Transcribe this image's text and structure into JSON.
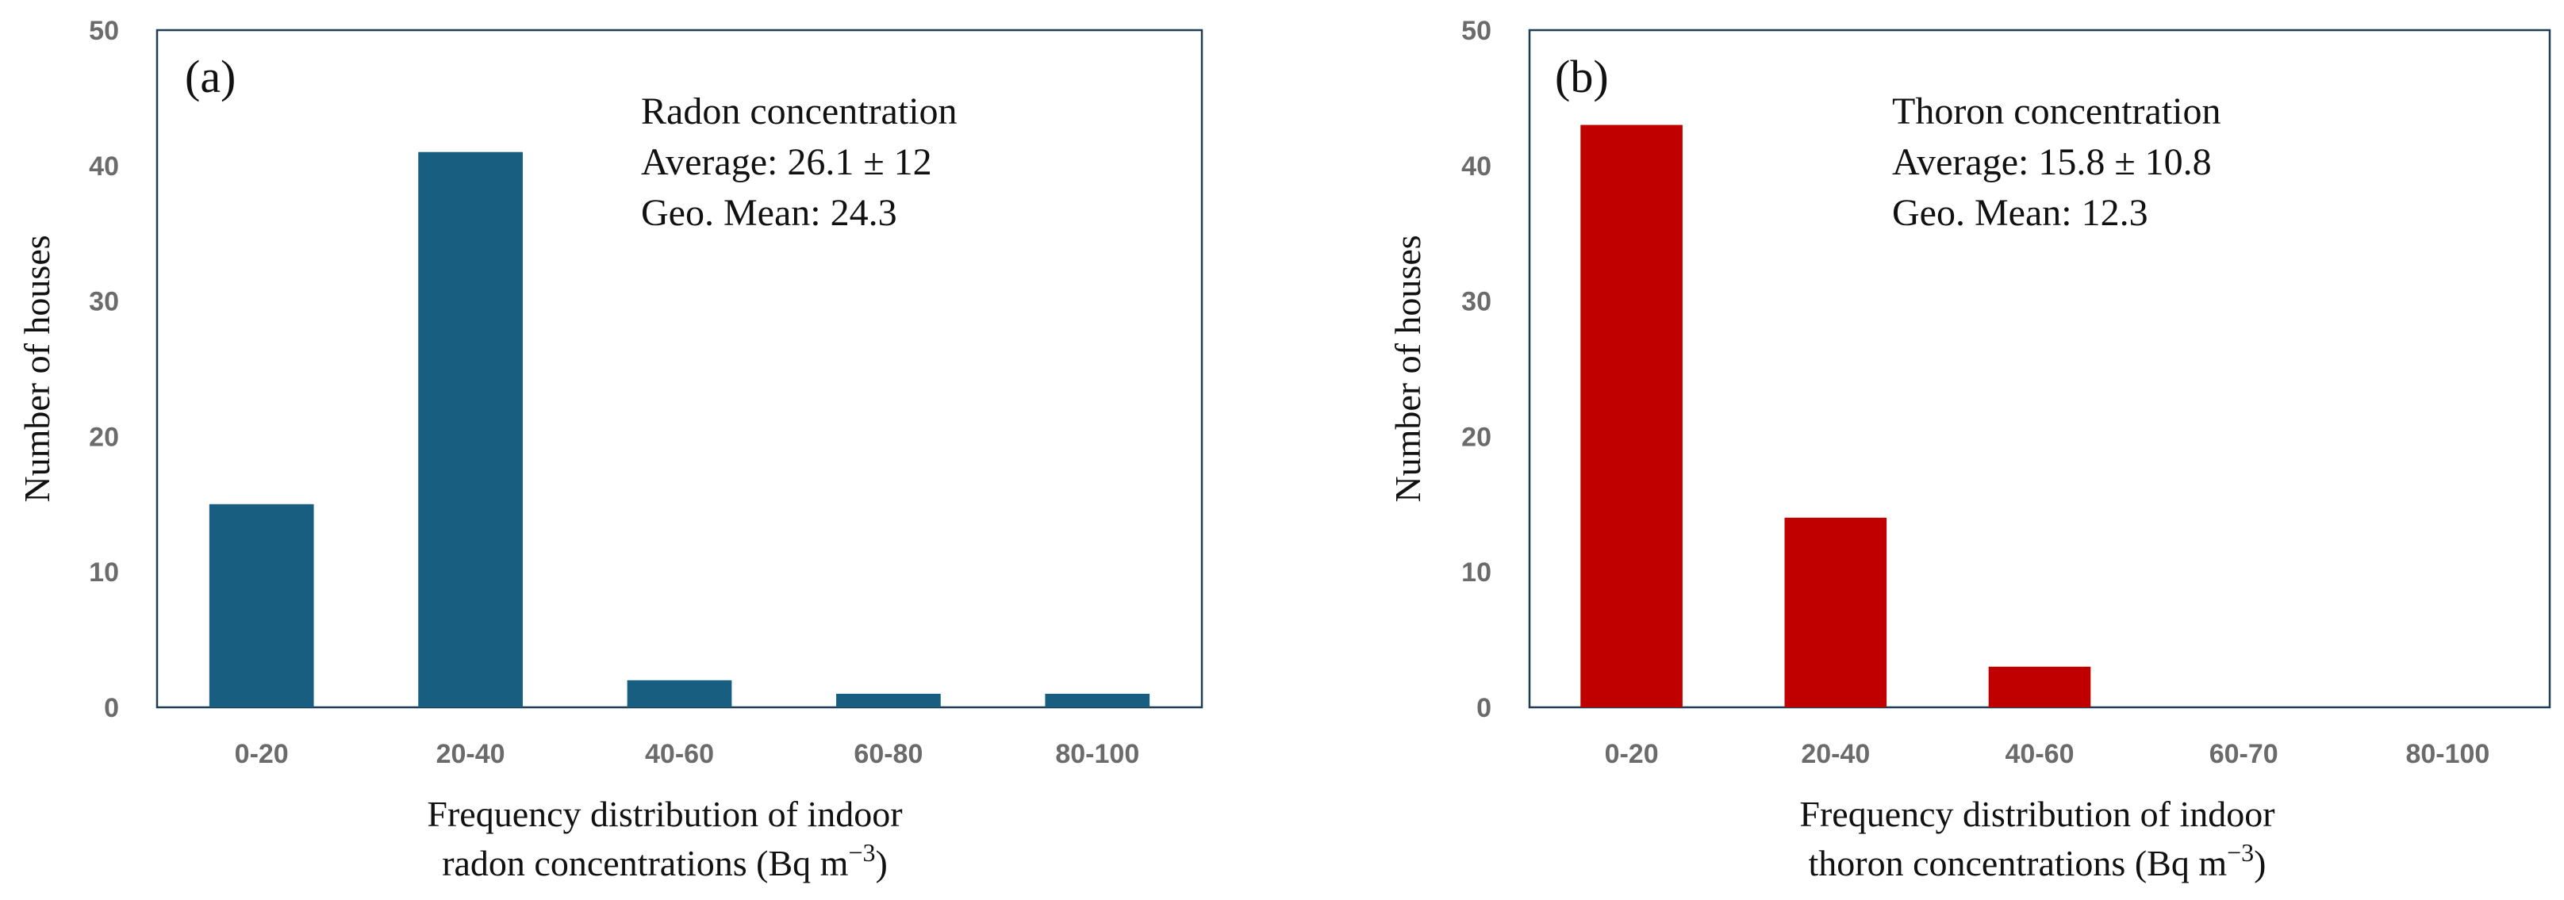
{
  "chart_data": [
    {
      "type": "bar",
      "panel_label": "(a)",
      "categories": [
        "0-20",
        "20-40",
        "40-60",
        "60-80",
        "80-100"
      ],
      "values": [
        15,
        41,
        2,
        1,
        1
      ],
      "ylim": [
        0,
        50
      ],
      "yticks": [
        0,
        10,
        20,
        30,
        40,
        50
      ],
      "ylabel": "Number of houses",
      "xlabel_line1": "Frequency distribution of indoor",
      "xlabel_line2": "radon concentrations (Bq m",
      "xlabel_sup": "−3",
      "xlabel_close": ")",
      "annotation": [
        "Radon concentration",
        "Average: 26.1 ± 12",
        "Geo. Mean: 24.3"
      ],
      "color": "#175e80",
      "grid": false
    },
    {
      "type": "bar",
      "panel_label": "(b)",
      "categories": [
        "0-20",
        "20-40",
        "40-60",
        "60-70",
        "80-100"
      ],
      "values": [
        43,
        14,
        3,
        0,
        0
      ],
      "ylim": [
        0,
        50
      ],
      "yticks": [
        0,
        10,
        20,
        30,
        40,
        50
      ],
      "ylabel": "Number of houses",
      "xlabel_line1": "Frequency distribution of indoor",
      "xlabel_line2": "thoron concentrations (Bq m",
      "xlabel_sup": "−3",
      "xlabel_close": ")",
      "annotation": [
        "Thoron concentration",
        "Average: 15.8 ± 10.8",
        "Geo. Mean: 12.3"
      ],
      "color": "#c00000",
      "grid": false
    }
  ]
}
